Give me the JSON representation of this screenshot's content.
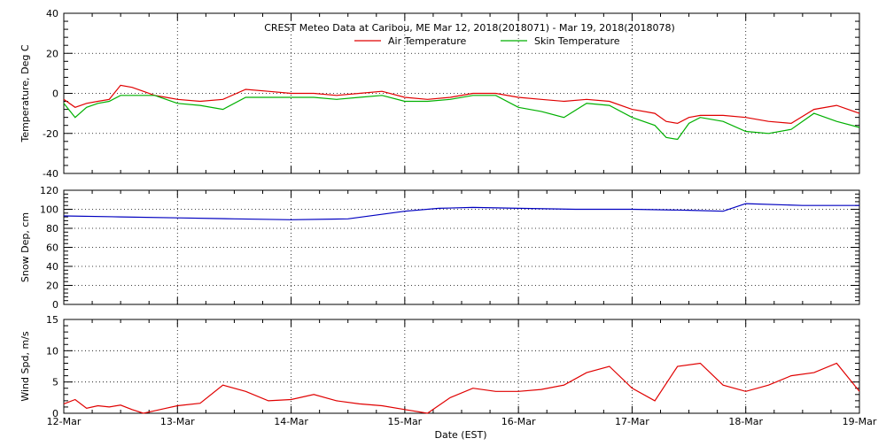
{
  "title": "CREST Meteo Data at Caribou, ME   Mar 12, 2018(2018071) - Mar 19, 2018(2018078)",
  "xlabel": "Date (EST)",
  "x_ticks": [
    "12-Mar",
    "13-Mar",
    "14-Mar",
    "15-Mar",
    "16-Mar",
    "17-Mar",
    "18-Mar",
    "19-Mar"
  ],
  "colors": {
    "air": "#e00000",
    "skin": "#00b000",
    "snow": "#0000c0",
    "wind": "#e00000"
  },
  "chart_data": [
    {
      "type": "line",
      "ylabel": "Temperature, Deg C",
      "ylim": [
        -40,
        40
      ],
      "yticks": [
        -40,
        -20,
        0,
        20,
        40
      ],
      "xlim": [
        0,
        7
      ],
      "grid": true,
      "legend_position": "top-center",
      "series": [
        {
          "name": "Air Temperature",
          "x": [
            0,
            0.1,
            0.2,
            0.3,
            0.4,
            0.5,
            0.6,
            0.7,
            0.8,
            0.9,
            1.0,
            1.2,
            1.4,
            1.6,
            1.8,
            2.0,
            2.2,
            2.4,
            2.6,
            2.8,
            3.0,
            3.2,
            3.4,
            3.6,
            3.8,
            4.0,
            4.2,
            4.4,
            4.6,
            4.8,
            5.0,
            5.2,
            5.3,
            5.4,
            5.5,
            5.6,
            5.8,
            6.0,
            6.2,
            6.4,
            6.6,
            6.8,
            7.0
          ],
          "y": [
            -3,
            -7,
            -5,
            -4,
            -3,
            4,
            3,
            1,
            -1,
            -2,
            -3,
            -4,
            -3,
            2,
            1,
            0,
            0,
            -1,
            0,
            1,
            -2,
            -3,
            -2,
            0,
            0,
            -2,
            -3,
            -4,
            -3,
            -4,
            -8,
            -10,
            -14,
            -15,
            -12,
            -11,
            -11,
            -12,
            -14,
            -15,
            -8,
            -6,
            -10
          ]
        },
        {
          "name": "Skin Temperature",
          "x": [
            0,
            0.1,
            0.2,
            0.3,
            0.4,
            0.5,
            0.6,
            0.7,
            0.8,
            0.9,
            1.0,
            1.2,
            1.4,
            1.6,
            1.8,
            2.0,
            2.2,
            2.4,
            2.6,
            2.8,
            3.0,
            3.2,
            3.4,
            3.6,
            3.8,
            4.0,
            4.2,
            4.4,
            4.6,
            4.8,
            5.0,
            5.2,
            5.3,
            5.4,
            5.5,
            5.6,
            5.8,
            6.0,
            6.2,
            6.4,
            6.6,
            6.8,
            7.0
          ],
          "y": [
            -5,
            -12,
            -7,
            -5,
            -4,
            -1,
            -1,
            -1,
            -1,
            -3,
            -5,
            -6,
            -8,
            -2,
            -2,
            -2,
            -2,
            -3,
            -2,
            -1,
            -4,
            -4,
            -3,
            -1,
            -1,
            -7,
            -9,
            -12,
            -5,
            -6,
            -12,
            -16,
            -22,
            -23,
            -15,
            -12,
            -14,
            -19,
            -20,
            -18,
            -10,
            -14,
            -17
          ]
        }
      ]
    },
    {
      "type": "line",
      "ylabel": "Snow Dep, cm",
      "ylim": [
        0,
        120
      ],
      "yticks": [
        0,
        20,
        40,
        60,
        80,
        100,
        120
      ],
      "xlim": [
        0,
        7
      ],
      "grid": true,
      "series": [
        {
          "name": "",
          "x": [
            0,
            0.5,
            1.0,
            1.5,
            2.0,
            2.5,
            3.0,
            3.3,
            3.6,
            4.0,
            4.5,
            5.0,
            5.5,
            5.8,
            6.0,
            6.5,
            7.0
          ],
          "y": [
            93,
            92,
            91,
            90,
            89,
            90,
            98,
            101,
            102,
            101,
            100,
            100,
            99,
            98,
            106,
            104,
            104
          ]
        }
      ]
    },
    {
      "type": "line",
      "ylabel": "Wind Spd, m/s",
      "ylim": [
        0,
        15
      ],
      "yticks": [
        0,
        5,
        10,
        15
      ],
      "xlim": [
        0,
        7
      ],
      "grid": true,
      "series": [
        {
          "name": "",
          "x": [
            0,
            0.1,
            0.2,
            0.3,
            0.4,
            0.5,
            0.6,
            0.7,
            0.8,
            0.9,
            1.0,
            1.2,
            1.4,
            1.6,
            1.8,
            2.0,
            2.2,
            2.4,
            2.6,
            2.8,
            3.0,
            3.2,
            3.4,
            3.6,
            3.8,
            4.0,
            4.2,
            4.4,
            4.6,
            4.8,
            5.0,
            5.2,
            5.4,
            5.6,
            5.8,
            6.0,
            6.2,
            6.4,
            6.6,
            6.8,
            7.0
          ],
          "y": [
            1.5,
            2.2,
            0.8,
            1.2,
            1.0,
            1.3,
            0.6,
            0,
            0.4,
            0.8,
            1.2,
            1.6,
            4.5,
            3.5,
            2.0,
            2.2,
            3.0,
            2.0,
            1.5,
            1.2,
            0.6,
            0,
            2.5,
            4.0,
            3.5,
            3.5,
            3.8,
            4.5,
            6.5,
            7.5,
            4.0,
            2.0,
            7.5,
            8.0,
            4.5,
            3.5,
            4.5,
            6.0,
            6.5,
            8.0,
            3.5
          ]
        }
      ]
    }
  ]
}
